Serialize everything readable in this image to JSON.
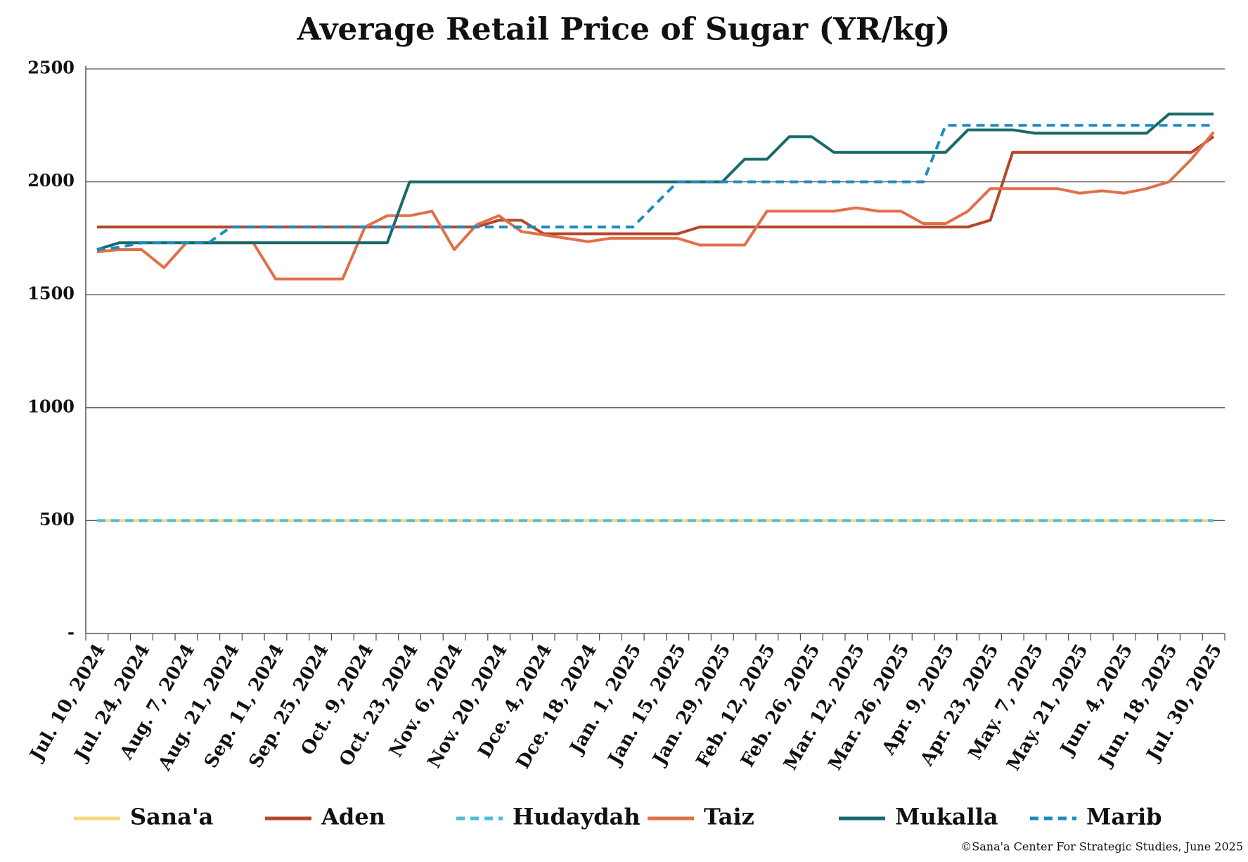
{
  "chart_data": {
    "type": "line",
    "title": "Average Retail Price of Sugar (YR/kg)",
    "source": "©Sana'a Center For Strategic Studies, June 2025",
    "categories": [
      "Jul. 10, 2024",
      null,
      "Jul. 24, 2024",
      null,
      "Aug. 7, 2024",
      null,
      "Aug. 21, 2024",
      null,
      "Sep. 11, 2024",
      null,
      "Sep. 25, 2024",
      null,
      "Oct. 9, 2024",
      null,
      "Oct. 23, 2024",
      null,
      "Nov. 6, 2024",
      null,
      "Nov. 20, 2024",
      null,
      "Dce. 4, 2024",
      null,
      "Dce. 18, 2024",
      null,
      "Jan. 1, 2025",
      null,
      "Jan. 15, 2025",
      null,
      "Jan. 29, 2025",
      null,
      "Feb. 12, 2025",
      null,
      "Feb. 26, 2025",
      null,
      "Mar. 12, 2025",
      null,
      "Mar. 26, 2025",
      null,
      "Apr. 9, 2025",
      null,
      "Apr. 23, 2025",
      null,
      "May. 7, 2025",
      null,
      "May. 21, 2025",
      null,
      "Jun. 4, 2025",
      null,
      "Jun. 18, 2025",
      null,
      "Jul. 30, 2025"
    ],
    "series": [
      {
        "name": "Sana'a",
        "color": "#f9d77e",
        "style": "solid",
        "values": [
          500,
          500,
          500,
          500,
          500,
          500,
          500,
          500,
          500,
          500,
          500,
          500,
          500,
          500,
          500,
          500,
          500,
          500,
          500,
          500,
          500,
          500,
          500,
          500,
          500,
          500,
          500,
          500,
          500,
          500,
          500,
          500,
          500,
          500,
          500,
          500,
          500,
          500,
          500,
          500,
          500,
          500,
          500,
          500,
          500,
          500,
          500,
          500,
          500,
          500,
          500
        ]
      },
      {
        "name": "Aden",
        "color": "#b5462a",
        "style": "solid",
        "values": [
          1800,
          1800,
          1800,
          1800,
          1800,
          1800,
          1800,
          1800,
          1800,
          1800,
          1800,
          1800,
          1800,
          1800,
          1800,
          1800,
          1800,
          1800,
          1830,
          1830,
          1770,
          1770,
          1770,
          1770,
          1770,
          1770,
          1770,
          1800,
          1800,
          1800,
          1800,
          1800,
          1800,
          1800,
          1800,
          1800,
          1800,
          1800,
          1800,
          1800,
          1830,
          2130,
          2130,
          2130,
          2130,
          2130,
          2130,
          2130,
          2130,
          2130,
          2200
        ]
      },
      {
        "name": "Hudaydah",
        "color": "#4bbfcc",
        "style": "dashed",
        "values": [
          500,
          500,
          500,
          500,
          500,
          500,
          500,
          500,
          500,
          500,
          500,
          500,
          500,
          500,
          500,
          500,
          500,
          500,
          500,
          500,
          500,
          500,
          500,
          500,
          500,
          500,
          500,
          500,
          500,
          500,
          500,
          500,
          500,
          500,
          500,
          500,
          500,
          500,
          500,
          500,
          500,
          500,
          500,
          500,
          500,
          500,
          500,
          500,
          500,
          500,
          500
        ]
      },
      {
        "name": "Taiz",
        "color": "#e0704a",
        "style": "solid",
        "values": [
          1690,
          1700,
          1700,
          1620,
          1730,
          1730,
          1730,
          1730,
          1570,
          1570,
          1570,
          1570,
          1800,
          1850,
          1850,
          1870,
          1700,
          1810,
          1850,
          1780,
          1765,
          1750,
          1735,
          1750,
          1750,
          1750,
          1750,
          1720,
          1720,
          1720,
          1870,
          1870,
          1870,
          1870,
          1885,
          1870,
          1870,
          1815,
          1815,
          1870,
          1970,
          1970,
          1970,
          1970,
          1950,
          1960,
          1950,
          1970,
          2000,
          2100,
          2220
        ]
      },
      {
        "name": "Mukalla",
        "color": "#17696a",
        "style": "solid",
        "values": [
          1700,
          1730,
          1730,
          1730,
          1730,
          1730,
          1730,
          1730,
          1730,
          1730,
          1730,
          1730,
          1730,
          1730,
          2000,
          2000,
          2000,
          2000,
          2000,
          2000,
          2000,
          2000,
          2000,
          2000,
          2000,
          2000,
          2000,
          2000,
          2000,
          2100,
          2100,
          2200,
          2200,
          2130,
          2130,
          2130,
          2130,
          2130,
          2130,
          2230,
          2230,
          2230,
          2215,
          2215,
          2215,
          2215,
          2215,
          2215,
          2300,
          2300,
          2300
        ]
      },
      {
        "name": "Marib",
        "color": "#1f8ac0",
        "style": "dashed",
        "values": [
          1700,
          1710,
          1730,
          1730,
          1730,
          1730,
          1800,
          1800,
          1800,
          1800,
          1800,
          1800,
          1800,
          1800,
          1800,
          1800,
          1800,
          1800,
          1800,
          1800,
          1800,
          1800,
          1800,
          1800,
          1800,
          1900,
          2000,
          2000,
          2000,
          2000,
          2000,
          2000,
          2000,
          2000,
          2000,
          2000,
          2000,
          2000,
          2250,
          2250,
          2250,
          2250,
          2250,
          2250,
          2250,
          2250,
          2250,
          2250,
          2250,
          2250,
          2250
        ]
      }
    ],
    "ylim": [
      0,
      2500
    ],
    "yticks": [
      {
        "value": 0,
        "label": "-"
      },
      500,
      1000,
      1500,
      2000,
      2500
    ],
    "grid": true,
    "legend": "bottom"
  }
}
